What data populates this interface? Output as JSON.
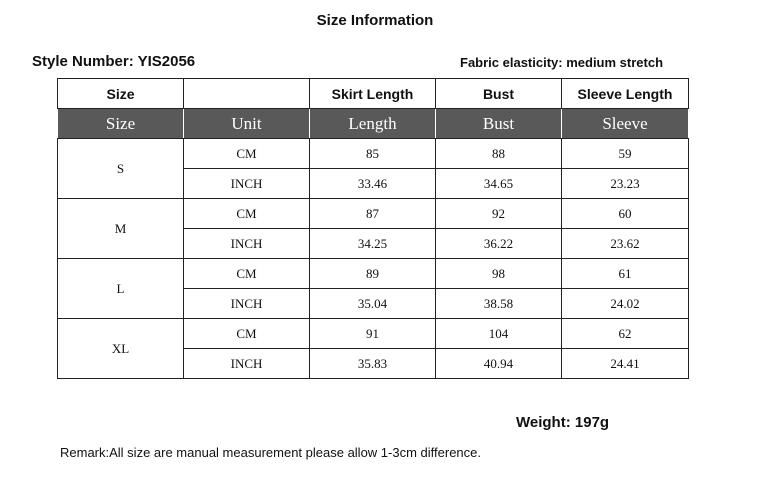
{
  "header": {
    "title": "Size Information",
    "style_number": "Style Number: YIS2056",
    "fabric": "Fabric elasticity: medium stretch"
  },
  "table": {
    "header": {
      "size": "Size",
      "skirt_length": "Skirt Length",
      "bust": "Bust",
      "sleeve_length": "Sleeve Length"
    },
    "subheader": [
      "Size",
      "Unit",
      "Length",
      "Bust",
      "Sleeve"
    ],
    "sizes": [
      {
        "size": "S",
        "rows": [
          [
            "CM",
            "85",
            "88",
            "59"
          ],
          [
            "INCH",
            "33.46",
            "34.65",
            "23.23"
          ]
        ]
      },
      {
        "size": "M",
        "rows": [
          [
            "CM",
            "87",
            "92",
            "60"
          ],
          [
            "INCH",
            "34.25",
            "36.22",
            "23.62"
          ]
        ]
      },
      {
        "size": "L",
        "rows": [
          [
            "CM",
            "89",
            "98",
            "61"
          ],
          [
            "INCH",
            "35.04",
            "38.58",
            "24.02"
          ]
        ]
      },
      {
        "size": "XL",
        "rows": [
          [
            "CM",
            "91",
            "104",
            "62"
          ],
          [
            "INCH",
            "35.83",
            "40.94",
            "24.41"
          ]
        ]
      }
    ]
  },
  "footer": {
    "weight": "Weight: 197g",
    "remark": "Remark:All size are manual measurement please allow 1-3cm difference."
  }
}
